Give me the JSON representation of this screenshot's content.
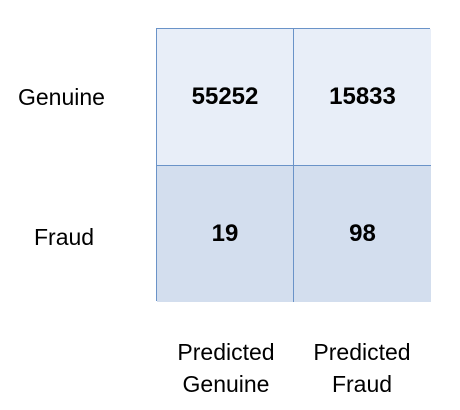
{
  "chart_data": {
    "type": "heatmap",
    "rows": [
      "Genuine",
      "Fraud"
    ],
    "columns": [
      "Predicted Genuine",
      "Predicted Fraud"
    ],
    "column_label_lines": [
      [
        "Predicted",
        "Genuine"
      ],
      [
        "Predicted",
        "Fraud"
      ]
    ],
    "values": [
      [
        55252,
        15833
      ],
      [
        19,
        98
      ]
    ],
    "row_colors": [
      "#e8eef8",
      "#d3deee"
    ],
    "border_color": "#6a93c8",
    "title": "",
    "xlabel": "",
    "ylabel": ""
  }
}
